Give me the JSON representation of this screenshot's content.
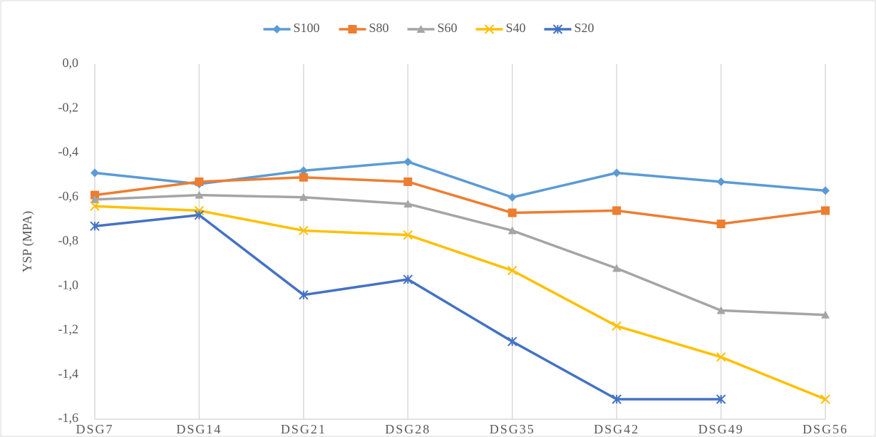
{
  "chart_data": {
    "type": "line",
    "y_label": "YSP (MPA)",
    "categories": [
      "DSG7",
      "DSG14",
      "DSG21",
      "DSG28",
      "DSG35",
      "DSG42",
      "DSG49",
      "DSG56"
    ],
    "series": [
      {
        "name": "S100",
        "color": "#5b9bd5",
        "marker": "diamond",
        "values": [
          -0.49,
          -0.54,
          -0.48,
          -0.44,
          -0.6,
          -0.49,
          -0.53,
          -0.57
        ]
      },
      {
        "name": "S80",
        "color": "#ed7d31",
        "marker": "square",
        "values": [
          -0.59,
          -0.53,
          -0.51,
          -0.53,
          -0.67,
          -0.66,
          -0.72,
          -0.66
        ]
      },
      {
        "name": "S60",
        "color": "#a5a5a5",
        "marker": "triangle",
        "values": [
          -0.61,
          -0.59,
          -0.6,
          -0.63,
          -0.75,
          -0.92,
          -1.11,
          -1.13
        ]
      },
      {
        "name": "S40",
        "color": "#ffc000",
        "marker": "x",
        "values": [
          -0.64,
          -0.66,
          -0.75,
          -0.77,
          -0.93,
          -1.18,
          -1.32,
          -1.51
        ]
      },
      {
        "name": "S20",
        "color": "#4472c4",
        "marker": "star",
        "values": [
          -0.73,
          -0.68,
          -1.04,
          -0.97,
          -1.25,
          -1.51,
          -1.51,
          null
        ]
      }
    ],
    "ylim": [
      -1.6,
      0
    ],
    "yticks": [
      {
        "value": 0,
        "label": "0,0"
      },
      {
        "value": -0.2,
        "label": "-0,2"
      },
      {
        "value": -0.4,
        "label": "-0,4"
      },
      {
        "value": -0.6,
        "label": "-0,6"
      },
      {
        "value": -0.8,
        "label": "-0,8"
      },
      {
        "value": -1.0,
        "label": "-1,0"
      },
      {
        "value": -1.2,
        "label": "-1,2"
      },
      {
        "value": -1.4,
        "label": "-1,4"
      },
      {
        "value": -1.6,
        "label": "-1,6"
      }
    ],
    "grid": true,
    "legend": "top"
  }
}
